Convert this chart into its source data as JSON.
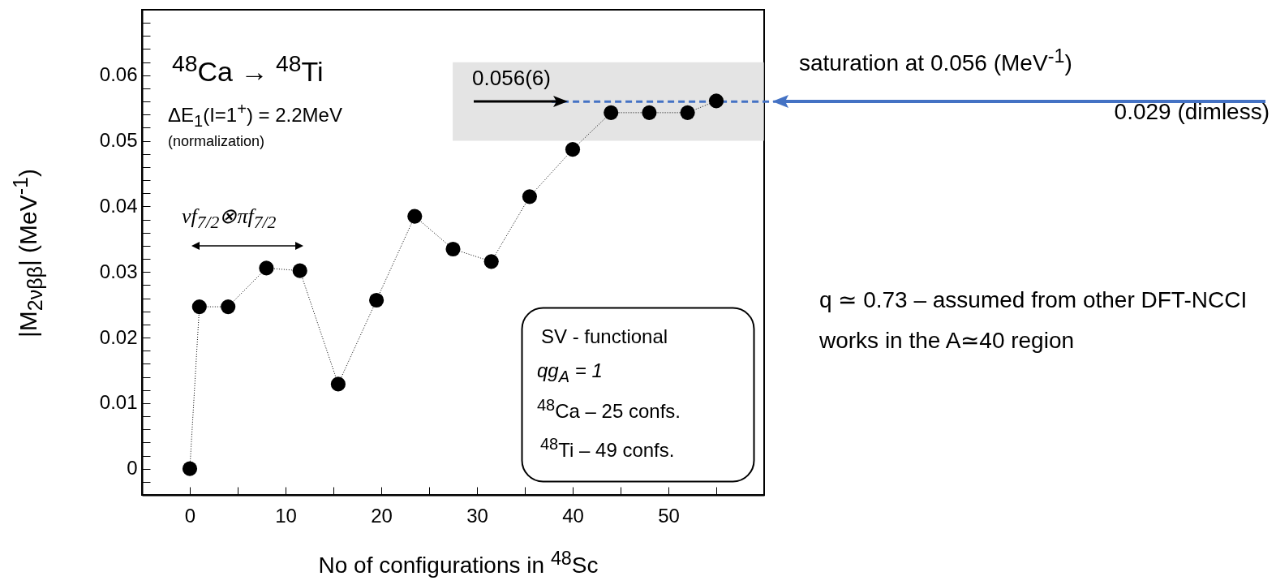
{
  "chart_data": {
    "type": "line",
    "xlabel": "No of configurations in $^{48}$Sc",
    "ylabel": "|M$_{2νββ}$| (MeV$^{-1}$)",
    "x": [
      0,
      1,
      4,
      8,
      11.5,
      15.5,
      19.5,
      23.5,
      27.5,
      31.5,
      35.5,
      40,
      44,
      48,
      52,
      55
    ],
    "series": [
      {
        "color": "#000000",
        "values": [
          0,
          0.0247,
          0.0247,
          0.0306,
          0.0302,
          0.0129,
          0.0257,
          0.0385,
          0.0335,
          0.0316,
          0.0415,
          0.0487,
          0.0543,
          0.0543,
          0.0543,
          0.0561
        ]
      }
    ],
    "marker": "circle",
    "line_style": "dotted",
    "grid": false,
    "xlim": [
      -5,
      60
    ],
    "xticks": [
      0,
      {
        "value": 5,
        "label": null
      },
      10,
      {
        "value": 15,
        "label": null
      },
      20,
      {
        "value": 25,
        "label": null
      },
      30,
      {
        "value": 35,
        "label": null
      },
      40,
      {
        "value": 45,
        "label": null
      },
      50,
      {
        "value": 55,
        "label": null
      }
    ],
    "ylim": [
      -0.004,
      0.07
    ],
    "yticks": [
      {
        "value": -0.002,
        "label": null
      },
      0,
      {
        "value": 0.002,
        "label": null
      },
      {
        "value": 0.004,
        "label": null
      },
      {
        "value": 0.006,
        "label": null
      },
      {
        "value": 0.008,
        "label": null
      },
      0.01,
      {
        "value": 0.012,
        "label": null
      },
      {
        "value": 0.014,
        "label": null
      },
      {
        "value": 0.016,
        "label": null
      },
      {
        "value": 0.018,
        "label": null
      },
      0.02,
      {
        "value": 0.022,
        "label": null
      },
      {
        "value": 0.024,
        "label": null
      },
      {
        "value": 0.026,
        "label": null
      },
      {
        "value": 0.028,
        "label": null
      },
      0.03,
      {
        "value": 0.032,
        "label": null
      },
      {
        "value": 0.034,
        "label": null
      },
      {
        "value": 0.036,
        "label": null
      },
      {
        "value": 0.038,
        "label": null
      },
      0.04,
      {
        "value": 0.042,
        "label": null
      },
      {
        "value": 0.044,
        "label": null
      },
      {
        "value": 0.046,
        "label": null
      },
      {
        "value": 0.048,
        "label": null
      },
      0.05,
      {
        "value": 0.052,
        "label": null
      },
      {
        "value": 0.054,
        "label": null
      },
      {
        "value": 0.056,
        "label": null
      },
      {
        "value": 0.058,
        "label": null
      },
      0.06,
      {
        "value": 0.062,
        "label": null
      },
      {
        "value": 0.064,
        "label": null
      },
      {
        "value": 0.066,
        "label": null
      },
      {
        "value": 0.068,
        "label": null
      }
    ],
    "bands": [
      {
        "axis": "y",
        "from": 0.05,
        "to": 0.062,
        "color": "#d9d9d9"
      }
    ],
    "ref_lines": [
      {
        "axis": "y",
        "value": 0.056,
        "color": "#4472c4",
        "line_style": "dashed"
      }
    ],
    "annotations": [
      "$^{48}$Ca → $^{48}$Ti",
      "ΔE$_{1}$(I=1$^{+}$) = 2.2MeV",
      "(normalization)",
      "νf$_{7/2}$⊗πf$_{7/2}$",
      {
        "text": "0.056(6)",
        "x": 39.5,
        "y": 0.056
      },
      "SV - functional",
      "qg$_{A}$ =  1",
      "$^{48}$Ca – 25 confs.",
      "$^{48}$Ti  – 49 confs.",
      "saturation at 0.056 (MeV$^{-1}$)",
      "0.029 (dimless)",
      "q ≃ 0.73 – assumed from other DFT-NCCI works in the A≃40 region"
    ]
  }
}
